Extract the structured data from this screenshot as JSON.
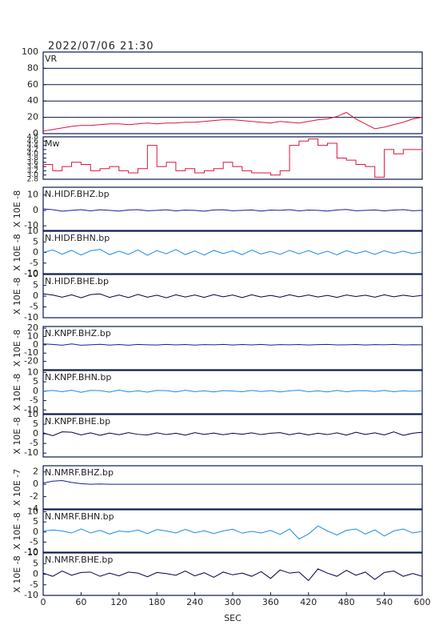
{
  "chart_data": [
    {
      "type": "line",
      "title": "2022/07/06 21:30",
      "label": "VR",
      "color": "#dc143c",
      "ylim": [
        0,
        100
      ],
      "yticks": [
        0,
        20,
        40,
        60,
        80,
        100
      ],
      "grid": true,
      "x": [
        0,
        15,
        30,
        45,
        60,
        75,
        90,
        105,
        120,
        135,
        150,
        165,
        180,
        195,
        210,
        225,
        240,
        255,
        270,
        285,
        300,
        315,
        330,
        345,
        360,
        375,
        390,
        405,
        420,
        435,
        450,
        465,
        480,
        495,
        510,
        525,
        540,
        555,
        570,
        585,
        600
      ],
      "values": [
        3,
        5,
        7,
        9,
        10,
        10,
        11,
        12,
        12,
        11,
        12,
        13,
        12,
        13,
        13,
        14,
        14,
        15,
        16,
        17,
        17,
        16,
        15,
        14,
        13,
        15,
        14,
        13,
        15,
        17,
        18,
        21,
        26,
        18,
        12,
        6,
        8,
        11,
        14,
        18,
        20
      ]
    },
    {
      "type": "line",
      "label": "Mw",
      "color": "#dc143c",
      "ylim": [
        2.8,
        4.8
      ],
      "yticks": [
        2.8,
        {
          "value": 3,
          "label": "3.0"
        },
        3.2,
        3.4,
        3.6,
        3.8,
        {
          "value": 4,
          "label": "4.0"
        },
        4.2,
        4.4,
        4.6,
        4.8
      ],
      "step": true,
      "x": [
        0,
        15,
        30,
        45,
        60,
        75,
        90,
        105,
        120,
        135,
        150,
        165,
        180,
        195,
        210,
        225,
        240,
        255,
        270,
        285,
        300,
        315,
        330,
        345,
        360,
        375,
        390,
        405,
        420,
        435,
        450,
        465,
        480,
        495,
        510,
        525,
        540,
        555,
        570,
        585,
        600
      ],
      "values": [
        3.5,
        3.2,
        3.4,
        3.6,
        3.5,
        3.2,
        3.3,
        3.4,
        3.2,
        3.1,
        3.3,
        4.4,
        3.4,
        3.6,
        3.2,
        3.3,
        3.1,
        3.2,
        3.3,
        3.6,
        3.4,
        3.2,
        3.1,
        3.1,
        3.0,
        3.2,
        4.4,
        4.6,
        4.7,
        4.4,
        4.5,
        3.8,
        3.7,
        3.5,
        3.4,
        2.9,
        4.2,
        4.0,
        4.2,
        4.2,
        4.1
      ]
    },
    {
      "type": "line",
      "label": "N.HIDF.BHZ.bp",
      "ylabel": "X 10E -8",
      "color": "#1a1aa0",
      "ylim": [
        -13,
        15
      ],
      "yticks": [
        10,
        0,
        -10
      ],
      "x": [
        0,
        15,
        30,
        45,
        60,
        75,
        90,
        105,
        120,
        135,
        150,
        165,
        180,
        195,
        210,
        225,
        240,
        255,
        270,
        285,
        300,
        315,
        330,
        345,
        360,
        375,
        390,
        405,
        420,
        435,
        450,
        465,
        480,
        495,
        510,
        525,
        540,
        555,
        570,
        585,
        600
      ],
      "values": [
        1,
        0.5,
        -0.5,
        0,
        0.5,
        -0.3,
        0.4,
        0,
        -0.4,
        0.3,
        0.5,
        -0.2,
        0,
        0.4,
        -0.3,
        0.2,
        0,
        -0.5,
        0.3,
        0.4,
        -0.2,
        0,
        0.3,
        -0.4,
        0.2,
        0,
        0.5,
        -0.3,
        0.2,
        0,
        -0.4,
        0.3,
        0.6,
        -0.2,
        0,
        0.3,
        -0.3,
        0.2,
        0.5,
        -0.2,
        0
      ]
    },
    {
      "type": "line",
      "label": "N.HIDF.BHN.bp",
      "ylabel": "X 10E -8",
      "color": "#1e88e5",
      "ylim": [
        -10,
        10
      ],
      "yticks": [
        10,
        5,
        0,
        -5,
        -10
      ],
      "x": [
        0,
        15,
        30,
        45,
        60,
        75,
        90,
        105,
        120,
        135,
        150,
        165,
        180,
        195,
        210,
        225,
        240,
        255,
        270,
        285,
        300,
        315,
        330,
        345,
        360,
        375,
        390,
        405,
        420,
        435,
        450,
        465,
        480,
        495,
        510,
        525,
        540,
        555,
        570,
        585,
        600
      ],
      "values": [
        0,
        1.2,
        -0.8,
        1,
        -1.2,
        0.8,
        1.5,
        -1,
        0.6,
        -0.9,
        1.2,
        -1.3,
        0.9,
        -0.6,
        1.4,
        -1,
        0.7,
        -1.2,
        1,
        -0.5,
        0.8,
        -1,
        1.1,
        -0.7,
        0.5,
        -0.9,
        1,
        -0.6,
        0.9,
        -0.8,
        0.6,
        -1.1,
        0.9,
        -0.5,
        0.7,
        -0.9,
        0.8,
        -0.4,
        0.6,
        -0.5,
        0.3
      ]
    },
    {
      "type": "line",
      "label": "N.HIDF.BHE.bp",
      "ylabel": "X 10E -8",
      "color": "#00004d",
      "ylim": [
        -10,
        10
      ],
      "yticks": [
        10,
        5,
        0,
        -5,
        -10
      ],
      "x": [
        0,
        15,
        30,
        45,
        60,
        75,
        90,
        105,
        120,
        135,
        150,
        165,
        180,
        195,
        210,
        225,
        240,
        255,
        270,
        285,
        300,
        315,
        330,
        345,
        360,
        375,
        390,
        405,
        420,
        435,
        450,
        465,
        480,
        495,
        510,
        525,
        540,
        555,
        570,
        585,
        600
      ],
      "values": [
        1,
        0.5,
        -0.5,
        0.6,
        -0.8,
        0.7,
        1,
        -0.6,
        0.5,
        -0.7,
        0.8,
        -0.5,
        0.4,
        -0.8,
        0.6,
        -0.4,
        0.5,
        -0.6,
        0.7,
        -0.3,
        0.5,
        -0.7,
        0.6,
        -0.4,
        0.3,
        -0.5,
        0.6,
        -0.3,
        0.5,
        -0.4,
        0.3,
        -0.6,
        0.5,
        -0.2,
        0.4,
        -0.5,
        0.6,
        -0.3,
        0.4,
        -0.2,
        0.3
      ]
    },
    {
      "type": "line",
      "label": "N.KNPF.BHZ.bp",
      "ylabel": "X 10E -8",
      "color": "#1a1aa0",
      "ylim": [
        -30,
        22
      ],
      "yticks": [
        20,
        10,
        0,
        -10,
        -20
      ],
      "x": [
        0,
        15,
        30,
        45,
        60,
        75,
        90,
        105,
        120,
        135,
        150,
        165,
        180,
        195,
        210,
        225,
        240,
        255,
        270,
        285,
        300,
        315,
        330,
        345,
        360,
        375,
        390,
        405,
        420,
        435,
        450,
        465,
        480,
        495,
        510,
        525,
        540,
        555,
        570,
        585,
        600
      ],
      "values": [
        1,
        0.5,
        -0.5,
        1,
        -0.5,
        0,
        0.6,
        -0.4,
        0.3,
        -0.5,
        0.4,
        0,
        -0.3,
        0.5,
        -0.2,
        0.3,
        -0.4,
        0.2,
        0,
        0.4,
        -0.3,
        0.3,
        -0.2,
        0.5,
        -0.4,
        0.2,
        0,
        0.3,
        -0.3,
        0.2,
        0.4,
        -0.2,
        0,
        0.3,
        -0.3,
        0.2,
        0,
        0.4,
        -0.2,
        0.1,
        0
      ]
    },
    {
      "type": "line",
      "label": "N.KNPF.BHN.bp",
      "ylabel": "X 10E -8",
      "color": "#1e88e5",
      "ylim": [
        -12,
        11
      ],
      "yticks": [
        10,
        5,
        0,
        -5,
        -10
      ],
      "x": [
        0,
        15,
        30,
        45,
        60,
        75,
        90,
        105,
        120,
        135,
        150,
        165,
        180,
        195,
        210,
        225,
        240,
        255,
        270,
        285,
        300,
        315,
        330,
        345,
        360,
        375,
        390,
        405,
        420,
        435,
        450,
        465,
        480,
        495,
        510,
        525,
        540,
        555,
        570,
        585,
        600
      ],
      "values": [
        0,
        0.4,
        -0.3,
        0.5,
        -0.6,
        0.4,
        0.3,
        -0.5,
        0.6,
        -0.4,
        0.2,
        -0.5,
        0.4,
        0.3,
        -0.4,
        0.5,
        -0.3,
        0.2,
        -0.4,
        0.3,
        0.1,
        -0.3,
        0.4,
        -0.2,
        0.3,
        -0.4,
        0.2,
        0.5,
        -0.3,
        0.2,
        -0.4,
        0.4,
        -0.3,
        0.2,
        0.3,
        -0.2,
        0.4,
        -0.3,
        0.2,
        -0.1,
        0.2
      ]
    },
    {
      "type": "line",
      "label": "N.KNPF.BHE.bp",
      "ylabel": "X 10E -8",
      "color": "#00004d",
      "ylim": [
        -12,
        10
      ],
      "yticks": [
        10,
        5,
        0,
        -5,
        -10
      ],
      "x": [
        0,
        15,
        30,
        45,
        60,
        75,
        90,
        105,
        120,
        135,
        150,
        165,
        180,
        195,
        210,
        225,
        240,
        255,
        270,
        285,
        300,
        315,
        330,
        345,
        360,
        375,
        390,
        405,
        420,
        435,
        450,
        465,
        480,
        495,
        510,
        525,
        540,
        555,
        570,
        585,
        600
      ],
      "values": [
        0.5,
        -1,
        1,
        0.8,
        -0.6,
        0.5,
        -0.8,
        0.4,
        -0.5,
        0.6,
        -0.3,
        -0.6,
        0.5,
        -0.4,
        0.3,
        -0.7,
        0.6,
        -0.3,
        0.4,
        -0.5,
        0.3,
        -0.2,
        0.5,
        -0.4,
        0.3,
        0.6,
        -0.5,
        0.4,
        -0.6,
        0.3,
        -0.4,
        0.5,
        -0.7,
        0.8,
        -0.3,
        0.5,
        -0.6,
        1,
        -0.8,
        0.3,
        0.8
      ]
    },
    {
      "type": "line",
      "label": "N.NMRF.BHZ.bp",
      "ylabel": "X 10E -7",
      "color": "#1a1aa0",
      "ylim": [
        -4,
        3
      ],
      "yticks": [
        2,
        0,
        -2,
        -4
      ],
      "x": [
        0,
        15,
        30,
        45,
        60,
        75,
        90,
        105,
        120,
        135,
        150,
        165,
        180,
        195,
        210,
        225,
        240,
        255,
        270,
        285,
        300,
        315,
        330,
        345,
        360,
        375,
        390,
        405,
        420,
        435,
        450,
        465,
        480,
        495,
        510,
        525,
        540,
        555,
        570,
        585,
        600
      ],
      "values": [
        0.2,
        0.5,
        0.6,
        0.3,
        0.1,
        0,
        0.05,
        0,
        0,
        0,
        0,
        0,
        0,
        0,
        0,
        0,
        0,
        0,
        0,
        0,
        0,
        0,
        0,
        0,
        0,
        0,
        0,
        0,
        0,
        0,
        0,
        0,
        0,
        0,
        0,
        0,
        0,
        0,
        0,
        0,
        0
      ]
    },
    {
      "type": "line",
      "label": "N.NMRF.BHN.bp",
      "ylabel": "X 10E -8",
      "color": "#1e88e5",
      "ylim": [
        -10,
        11
      ],
      "yticks": [
        10,
        5,
        0,
        -5,
        -10
      ],
      "x": [
        0,
        15,
        30,
        45,
        60,
        75,
        90,
        105,
        120,
        135,
        150,
        165,
        180,
        195,
        210,
        225,
        240,
        255,
        270,
        285,
        300,
        315,
        330,
        345,
        360,
        375,
        390,
        405,
        420,
        435,
        450,
        465,
        480,
        495,
        510,
        525,
        540,
        555,
        570,
        585,
        600
      ],
      "values": [
        0.5,
        1,
        0.5,
        -0.5,
        1.5,
        -0.5,
        0.8,
        -1,
        0.5,
        0,
        1,
        -0.8,
        1.2,
        0.5,
        -0.5,
        1.3,
        -0.4,
        0.6,
        -0.8,
        0.5,
        1.4,
        -0.6,
        0.3,
        -0.5,
        0.8,
        -1.2,
        1.5,
        -3.5,
        -1,
        3,
        0.5,
        -1.5,
        0.8,
        1.5,
        -1,
        1,
        -2,
        0.5,
        1.5,
        -0.5,
        0.3
      ]
    },
    {
      "type": "line",
      "label": "N.NMRF.BHE.bp",
      "ylabel": "X 10E -8",
      "color": "#00004d",
      "ylim": [
        -10,
        10
      ],
      "yticks": [
        10,
        5,
        0,
        -5,
        -10
      ],
      "xlabel": "SEC",
      "xlim": [
        0,
        600
      ],
      "xticks": [
        0,
        60,
        120,
        180,
        240,
        300,
        360,
        420,
        480,
        540,
        600
      ],
      "x": [
        0,
        15,
        30,
        45,
        60,
        75,
        90,
        105,
        120,
        135,
        150,
        165,
        180,
        195,
        210,
        225,
        240,
        255,
        270,
        285,
        300,
        315,
        330,
        345,
        360,
        375,
        390,
        405,
        420,
        435,
        450,
        465,
        480,
        495,
        510,
        525,
        540,
        555,
        570,
        585,
        600
      ],
      "values": [
        0.5,
        -1,
        1.5,
        -0.5,
        0.8,
        1,
        -1,
        0.5,
        -0.8,
        1,
        0.5,
        -1.2,
        0.8,
        0.3,
        -0.5,
        1.5,
        -0.8,
        0.7,
        -1.5,
        1,
        -0.3,
        0.5,
        -1,
        1.2,
        -2,
        2,
        0.5,
        1,
        -3,
        2.5,
        0.5,
        -1,
        1.8,
        -0.5,
        1,
        -2.5,
        0.8,
        1.5,
        -1,
        0.3,
        -1
      ]
    }
  ]
}
